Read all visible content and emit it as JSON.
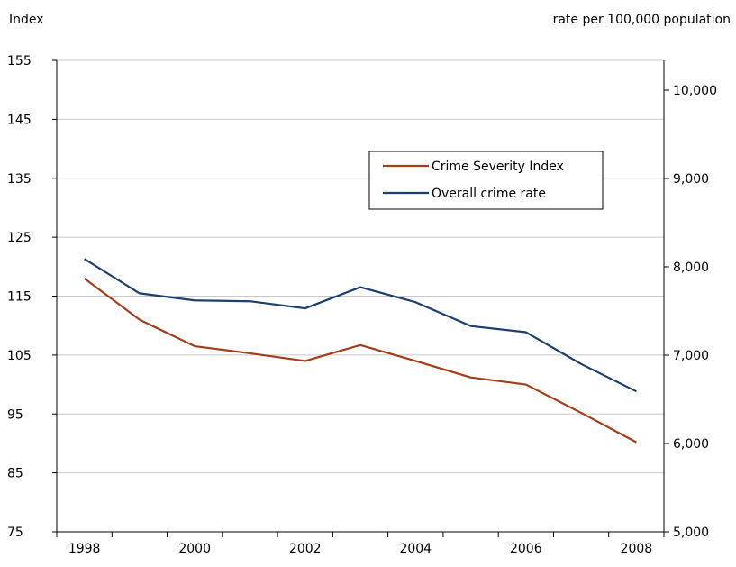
{
  "chart_data": {
    "type": "line",
    "title": "",
    "left_axis": {
      "label": "Index",
      "ylim": [
        75,
        155
      ],
      "ticks": [
        75,
        85,
        95,
        105,
        115,
        125,
        135,
        145,
        155
      ]
    },
    "right_axis": {
      "label": "rate per 100,000 population",
      "ylim": [
        5000,
        10000
      ],
      "ticks": [
        5000,
        6000,
        7000,
        8000,
        9000,
        10000
      ],
      "tick_labels": [
        "5,000",
        "6,000",
        "7,000",
        "8,000",
        "9,000",
        "10,000"
      ]
    },
    "x": [
      1998,
      1999,
      2000,
      2001,
      2002,
      2003,
      2004,
      2005,
      2006,
      2007,
      2008
    ],
    "xlim": [
      1997.5,
      2008.5
    ],
    "x_tick_labels": [
      "1998",
      "2000",
      "2002",
      "2004",
      "2006",
      "2008"
    ],
    "x_ticks": [
      1998,
      2000,
      2002,
      2004,
      2006,
      2008
    ],
    "grid": true,
    "legend": "top-right",
    "series": [
      {
        "name": "Crime Severity Index",
        "axis": "left",
        "color": "#a0401a",
        "values": [
          118,
          111,
          106.5,
          105.3,
          104,
          106.7,
          104,
          101.2,
          100,
          95.2,
          90.2
        ]
      },
      {
        "name": "Overall crime rate",
        "axis": "right",
        "color": "#1c3f6e",
        "values": [
          8090,
          7700,
          7620,
          7610,
          7530,
          7770,
          7600,
          7330,
          7260,
          6900,
          6590
        ]
      }
    ]
  }
}
